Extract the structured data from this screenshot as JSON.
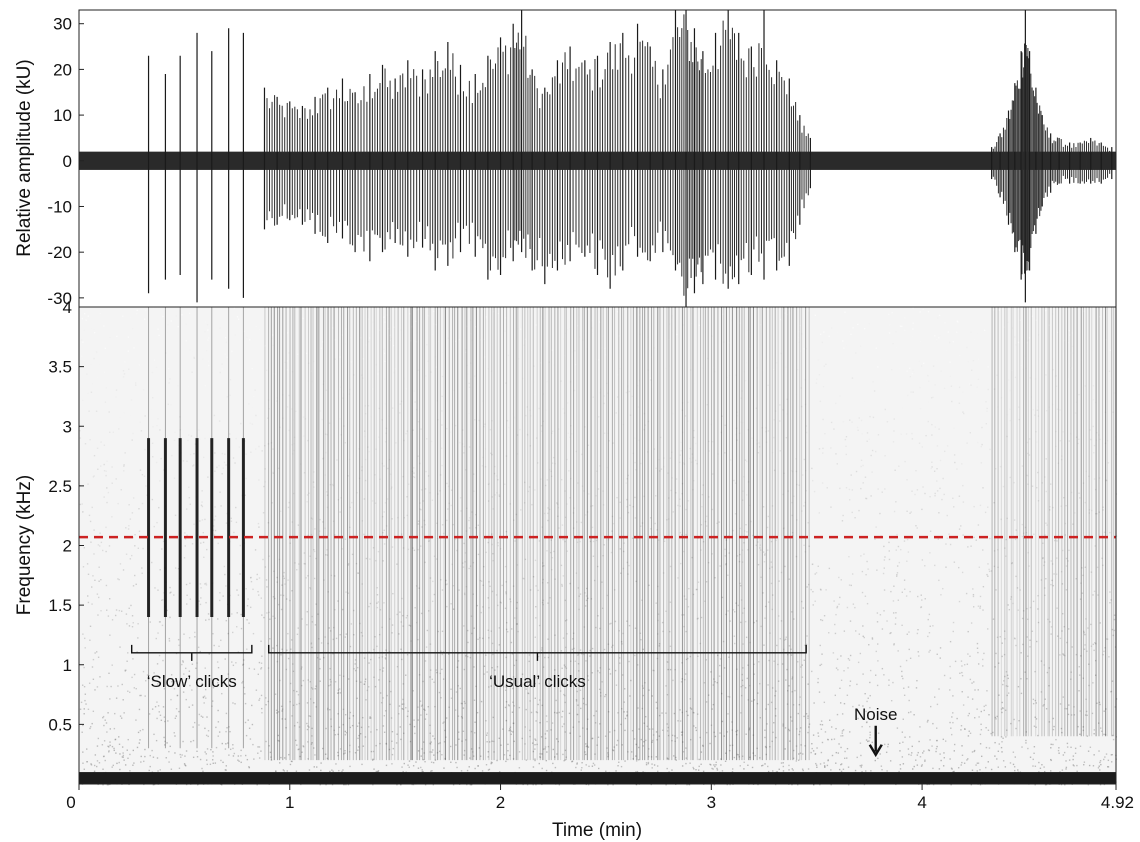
{
  "chart_data": [
    {
      "type": "line",
      "panel": "waveform",
      "ylabel": "Relative amplitude (kU)",
      "xlim": [
        0,
        4.92
      ],
      "ylim": [
        -32,
        33
      ],
      "yticks": [
        -30,
        -20,
        -10,
        0,
        10,
        20,
        30
      ],
      "ytick_labels": [
        "-30",
        "-20",
        "-10",
        "0",
        "10",
        "20",
        "30"
      ],
      "grid": false,
      "noise_band_kU": [
        -2,
        2
      ],
      "series": [
        {
          "x": [
            0.33,
            0.41,
            0.48,
            0.56,
            0.63,
            0.71,
            0.78
          ],
          "positive": [
            23,
            19,
            23,
            28,
            24,
            29,
            28
          ],
          "negative": [
            -29,
            -26,
            -25,
            -31,
            -26,
            -28,
            -30
          ]
        },
        {
          "x": [
            0.88,
            0.94,
            1.0,
            1.06,
            1.12,
            1.18,
            1.25,
            1.31,
            1.38,
            1.44,
            1.5,
            1.56,
            1.63,
            1.69,
            1.75,
            1.81,
            1.88,
            1.94,
            2.0,
            2.06,
            2.1,
            2.15,
            2.21,
            2.27,
            2.33,
            2.4,
            2.46,
            2.52,
            2.58,
            2.65,
            2.71,
            2.77,
            2.83,
            2.88,
            2.92,
            2.96,
            3.02,
            3.08,
            3.13,
            3.19,
            3.25,
            3.31,
            3.37,
            3.42,
            3.47
          ],
          "positive": [
            16,
            14,
            13,
            12,
            14,
            16,
            18,
            15,
            19,
            21,
            18,
            22,
            20,
            24,
            26,
            21,
            19,
            23,
            27,
            30,
            33,
            20,
            16,
            22,
            25,
            22,
            23,
            26,
            28,
            30,
            25,
            20,
            33,
            33,
            29,
            24,
            28,
            33,
            28,
            25,
            33,
            22,
            18,
            10,
            5
          ],
          "negative": [
            -15,
            -14,
            -13,
            -14,
            -16,
            -18,
            -17,
            -20,
            -22,
            -20,
            -18,
            -21,
            -19,
            -24,
            -23,
            -20,
            -21,
            -26,
            -25,
            -22,
            -20,
            -24,
            -27,
            -24,
            -22,
            -21,
            -25,
            -28,
            -24,
            -21,
            -22,
            -20,
            -24,
            -32,
            -29,
            -27,
            -26,
            -28,
            -27,
            -25,
            -26,
            -24,
            -23,
            -14,
            -6
          ]
        },
        {
          "x": [
            4.33,
            4.37,
            4.41,
            4.44,
            4.47,
            4.49,
            4.51,
            4.54,
            4.57,
            4.61,
            4.65,
            4.7,
            4.75,
            4.8,
            4.85,
            4.9
          ],
          "positive": [
            3,
            6,
            11,
            17,
            24,
            33,
            24,
            16,
            10,
            6,
            5,
            4,
            4,
            5,
            4,
            3
          ],
          "negative": [
            -4,
            -8,
            -14,
            -20,
            -26,
            -31,
            -24,
            -16,
            -10,
            -7,
            -5,
            -5,
            -5,
            -5,
            -5,
            -4
          ]
        }
      ]
    },
    {
      "type": "heatmap",
      "panel": "spectrogram",
      "xlabel": "Time (min)",
      "ylabel": "Frequency (kHz)",
      "xlim": [
        0,
        4.92
      ],
      "ylim": [
        0,
        4
      ],
      "xticks": [
        0,
        1,
        2,
        3,
        4,
        4.92
      ],
      "xtick_labels": [
        "0",
        "1",
        "2",
        "3",
        "4",
        "4.92"
      ],
      "yticks": [
        0.5,
        1,
        1.5,
        2,
        2.5,
        3,
        3.5,
        4
      ],
      "ytick_labels": [
        "0.5",
        "1",
        "1.5",
        "2",
        "2.5",
        "3",
        "3.5",
        "4"
      ],
      "threshold_line": {
        "y": 2.07,
        "color": "#cc2222"
      },
      "low_noise_band_kHz": [
        0,
        0.1
      ],
      "click_energy": [
        {
          "x": [
            0.33,
            0.41,
            0.48,
            0.56,
            0.63,
            0.71,
            0.78
          ],
          "band_kHz": [
            1.4,
            2.9
          ],
          "strength": 0.9
        },
        {
          "x_range": [
            0.88,
            3.47
          ],
          "band_kHz": [
            0.2,
            4.0
          ],
          "strength": 0.7
        },
        {
          "x_range": [
            4.33,
            4.92
          ],
          "band_kHz": [
            0.4,
            4.0
          ],
          "strength": 0.55
        }
      ],
      "annotations": [
        {
          "text": "‘Slow’ clicks",
          "x_start": 0.25,
          "x_end": 0.82,
          "y": 1.1
        },
        {
          "text": "‘Usual’ clicks",
          "x_start": 0.9,
          "x_end": 3.45,
          "y": 1.1
        },
        {
          "text": "Noise",
          "x": 3.78,
          "y": 0.22
        }
      ]
    }
  ]
}
